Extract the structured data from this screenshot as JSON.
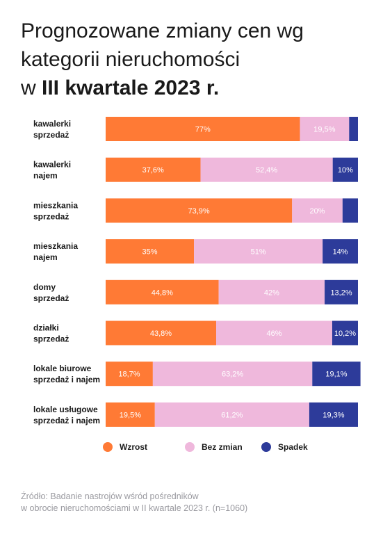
{
  "title": {
    "line1": "Prognozowane zmiany cen wg",
    "line2": "kategorii nieruchomości",
    "line3_prefix": "w ",
    "line3_bold": "III kwartale 2023 r."
  },
  "colors": {
    "wzrost": "#ff7a35",
    "bez_zmian": "#efb8dc",
    "spadek": "#2d3b9a"
  },
  "chart_data": {
    "type": "bar",
    "orientation": "horizontal-stacked",
    "categories": [
      [
        "kawalerki",
        "sprzedaż"
      ],
      [
        "kawalerki",
        "najem"
      ],
      [
        "mieszkania",
        "sprzedaż"
      ],
      [
        "mieszkania",
        "najem"
      ],
      [
        "domy",
        "sprzedaż"
      ],
      [
        "działki",
        "sprzedaż"
      ],
      [
        "lokale biurowe",
        "sprzedaż i najem"
      ],
      [
        "lokale usługowe",
        "sprzedaż i najem"
      ]
    ],
    "series": [
      {
        "name": "Wzrost",
        "values": [
          77,
          37.6,
          73.9,
          35,
          44.8,
          43.8,
          18.7,
          19.5
        ],
        "labels": [
          "77%",
          "37,6%",
          "73,9%",
          "35%",
          "44,8%",
          "43,8%",
          "18,7%",
          "19,5%"
        ]
      },
      {
        "name": "Bez zmian",
        "values": [
          19.5,
          52.4,
          20,
          51,
          42,
          46,
          63.2,
          61.2
        ],
        "labels": [
          "19,5%",
          "52,4%",
          "20%",
          "51%",
          "42%",
          "46%",
          "63,2%",
          "61,2%"
        ]
      },
      {
        "name": "Spadek",
        "values": [
          3.5,
          10,
          6.1,
          14,
          13.2,
          10.2,
          19.1,
          19.3
        ],
        "labels": [
          "",
          "10%",
          "",
          "14%",
          "13,2%",
          "10,2%",
          "19,1%",
          "19,3%"
        ]
      }
    ],
    "xlim": [
      0,
      100
    ],
    "legend_position": "bottom"
  },
  "legend": [
    {
      "label": "Wzrost",
      "color": "#ff7a35"
    },
    {
      "label": "Bez zmian",
      "color": "#efb8dc"
    },
    {
      "label": "Spadek",
      "color": "#2d3b9a"
    }
  ],
  "source": {
    "line1": "Źródło: Badanie nastrojów wśród pośredników",
    "line2": "w obrocie nieruchomościami w II kwartale 2023 r. (n=1060)"
  }
}
